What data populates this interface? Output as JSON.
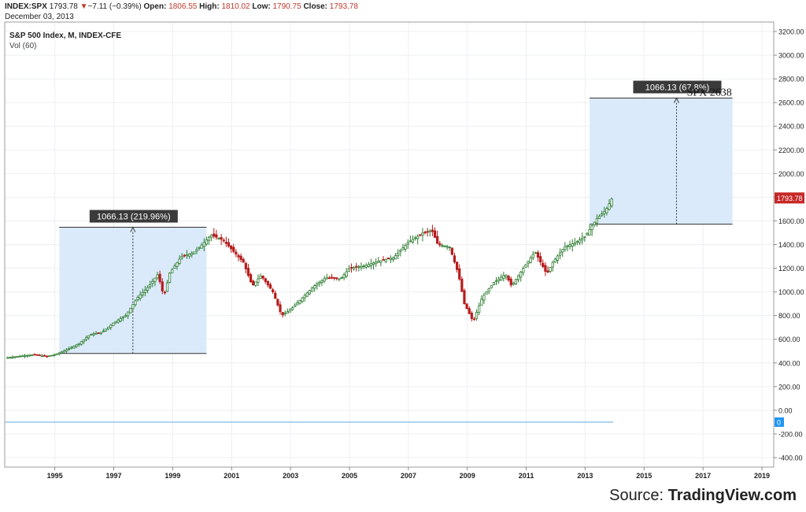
{
  "header": {
    "symbol": "INDEX:SPX",
    "last": "1793.78",
    "change_arrow": "▼",
    "change": "−7.11 (−0.39%)",
    "open_label": "Open:",
    "open": "1806.55",
    "high_label": "High:",
    "high": "1810.02",
    "low_label": "Low:",
    "low": "1790.75",
    "close_label": "Close:",
    "close": "1793.78",
    "date": "December 03, 2013"
  },
  "legend": {
    "series_title": "S&P 500 Index, M, INDEX-CFE",
    "volume_label": "Vol (60)"
  },
  "source": {
    "prefix": "Source: ",
    "brand": "TradingView.com"
  },
  "colors": {
    "up": "#2e7d32",
    "down": "#b71c1c",
    "box_fill": "#d6e8fb",
    "last_price_tag": "#c62828",
    "volume_line": "#90c5ea",
    "zero_tag": "#2196f3"
  },
  "chart_data": {
    "type": "candlestick",
    "xlabel": "",
    "ylabel": "",
    "xlim": [
      1993.3,
      2019.4
    ],
    "ylim": [
      -480,
      3280
    ],
    "x_ticks": [
      "1995",
      "1997",
      "1999",
      "2001",
      "2003",
      "2005",
      "2007",
      "2009",
      "2011",
      "2013",
      "2015",
      "2017",
      "2019"
    ],
    "y_ticks": [
      "3200.00",
      "3000.00",
      "2800.00",
      "2600.00",
      "2400.00",
      "2200.00",
      "2000.00",
      "1800.00",
      "1600.00",
      "1400.00",
      "1200.00",
      "1000.00",
      "800.00",
      "600.00",
      "400.00",
      "200.00",
      "0.00",
      "-200.00",
      "-400.00"
    ],
    "last_price": "1793.78",
    "volume_zero_label": "0",
    "close_path": [
      [
        1993.4,
        445
      ],
      [
        1993.9,
        460
      ],
      [
        1994.3,
        470
      ],
      [
        1994.7,
        455
      ],
      [
        1995.0,
        470
      ],
      [
        1995.3,
        500
      ],
      [
        1995.8,
        560
      ],
      [
        1996.2,
        640
      ],
      [
        1996.6,
        660
      ],
      [
        1997.0,
        740
      ],
      [
        1997.4,
        800
      ],
      [
        1997.8,
        950
      ],
      [
        1998.2,
        1050
      ],
      [
        1998.5,
        1150
      ],
      [
        1998.7,
        960
      ],
      [
        1998.9,
        1160
      ],
      [
        1999.3,
        1300
      ],
      [
        1999.7,
        1330
      ],
      [
        2000.0,
        1400
      ],
      [
        2000.3,
        1480
      ],
      [
        2000.7,
        1440
      ],
      [
        2001.0,
        1360
      ],
      [
        2001.4,
        1250
      ],
      [
        2001.7,
        1050
      ],
      [
        2002.0,
        1140
      ],
      [
        2002.4,
        1000
      ],
      [
        2002.7,
        800
      ],
      [
        2003.0,
        850
      ],
      [
        2003.4,
        950
      ],
      [
        2003.8,
        1050
      ],
      [
        2004.2,
        1120
      ],
      [
        2004.7,
        1110
      ],
      [
        2005.0,
        1200
      ],
      [
        2005.5,
        1220
      ],
      [
        2006.0,
        1260
      ],
      [
        2006.5,
        1290
      ],
      [
        2007.0,
        1420
      ],
      [
        2007.5,
        1500
      ],
      [
        2007.8,
        1520
      ],
      [
        2008.0,
        1400
      ],
      [
        2008.4,
        1380
      ],
      [
        2008.7,
        1150
      ],
      [
        2008.9,
        900
      ],
      [
        2009.2,
        750
      ],
      [
        2009.5,
        950
      ],
      [
        2009.9,
        1080
      ],
      [
        2010.3,
        1150
      ],
      [
        2010.5,
        1050
      ],
      [
        2010.9,
        1200
      ],
      [
        2011.3,
        1340
      ],
      [
        2011.7,
        1150
      ],
      [
        2011.9,
        1250
      ],
      [
        2012.3,
        1380
      ],
      [
        2012.7,
        1420
      ],
      [
        2013.0,
        1470
      ],
      [
        2013.4,
        1620
      ],
      [
        2013.7,
        1690
      ],
      [
        2013.92,
        1794
      ]
    ],
    "annotations": [
      {
        "label": "1066.13 (219.96%)",
        "x_start": 1995.15,
        "x_end": 2000.15,
        "y_low": 480,
        "y_high": 1546,
        "arrow_x": 1997.65
      },
      {
        "label": "1066.13 (67.8%)",
        "x_start": 2013.15,
        "x_end": 2018.0,
        "y_low": 1572,
        "y_high": 2638,
        "arrow_x": 2016.1
      }
    ],
    "text_annotation": "SPX 2638",
    "volume_line_y": -100
  }
}
